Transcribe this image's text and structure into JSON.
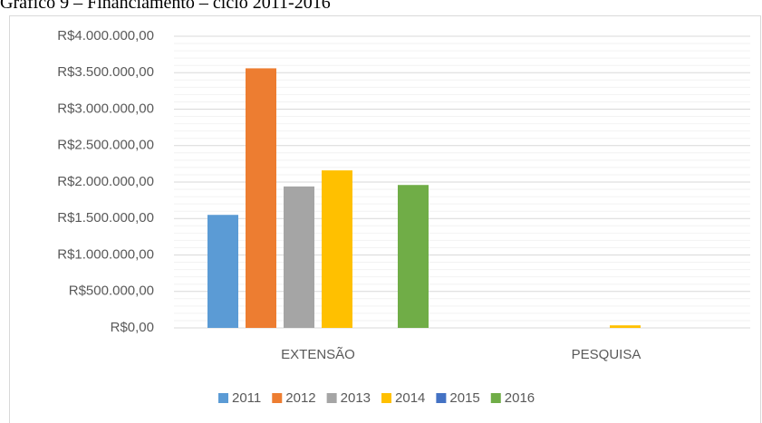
{
  "chart_data": {
    "type": "bar",
    "title": "Gráfico 9 – Financiamento – ciclo 2011-2016",
    "categories": [
      "EXTENSÃO",
      "PESQUISA"
    ],
    "series": [
      {
        "name": "2011",
        "color": "#5b9bd5",
        "values": [
          1550000,
          0
        ]
      },
      {
        "name": "2012",
        "color": "#ed7d31",
        "values": [
          3560000,
          0
        ]
      },
      {
        "name": "2013",
        "color": "#a5a5a5",
        "values": [
          1940000,
          0
        ]
      },
      {
        "name": "2014",
        "color": "#ffc000",
        "values": [
          2160000,
          35000
        ]
      },
      {
        "name": "2015",
        "color": "#4472c4",
        "values": [
          0,
          0
        ]
      },
      {
        "name": "2016",
        "color": "#70ad47",
        "values": [
          1960000,
          0
        ]
      }
    ],
    "ylim": [
      0,
      4000000
    ],
    "yticks": [
      {
        "value": 0,
        "label": "R$0,00"
      },
      {
        "value": 500000,
        "label": "R$500.000,00"
      },
      {
        "value": 1000000,
        "label": "R$1.000.000,00"
      },
      {
        "value": 1500000,
        "label": "R$1.500.000,00"
      },
      {
        "value": 2000000,
        "label": "R$2.000.000,00"
      },
      {
        "value": 2500000,
        "label": "R$2.500.000,00"
      },
      {
        "value": 3000000,
        "label": "R$3.000.000,00"
      },
      {
        "value": 3500000,
        "label": "R$3.500.000,00"
      },
      {
        "value": 4000000,
        "label": "R$4.000.000,00"
      }
    ],
    "grid": true,
    "minor_grid": true,
    "legend": "bottom"
  }
}
